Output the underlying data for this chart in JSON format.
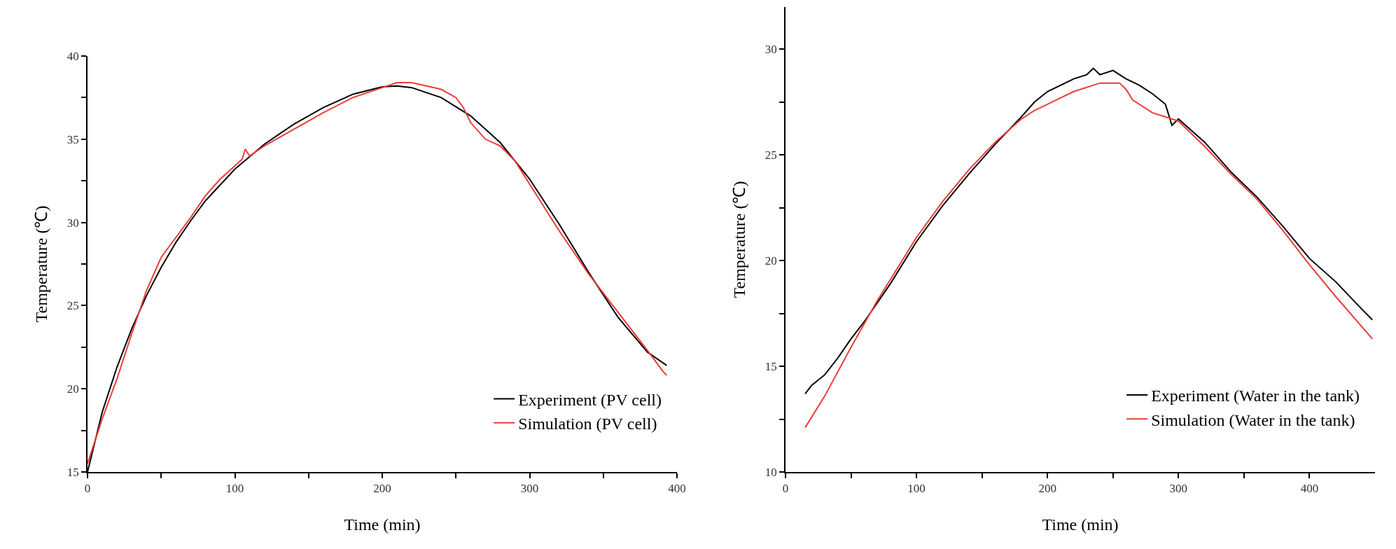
{
  "chart_data": [
    {
      "type": "line",
      "xlabel": "Time (min)",
      "ylabel": "Temperature (℃)",
      "xlim": [
        0,
        400
      ],
      "ylim": [
        15,
        40
      ],
      "xticks": [
        0,
        {
          "value": 50,
          "label": null
        },
        100,
        {
          "value": 150,
          "label": null
        },
        200,
        {
          "value": 250,
          "label": null
        },
        300,
        {
          "value": 350,
          "label": null
        },
        400
      ],
      "yticks": [
        15,
        {
          "value": 17.5,
          "label": null
        },
        20,
        {
          "value": 22.5,
          "label": null
        },
        25,
        {
          "value": 27.5,
          "label": null
        },
        30,
        {
          "value": 32.5,
          "label": null
        },
        35,
        {
          "value": 37.5,
          "label": null
        },
        40
      ],
      "grid": false,
      "legend": "bottom right",
      "series": [
        {
          "name": "Experiment (PV cell)",
          "color": "#000000",
          "x": [
            0,
            10,
            20,
            30,
            40,
            50,
            60,
            70,
            80,
            100,
            120,
            140,
            160,
            180,
            200,
            210,
            220,
            240,
            260,
            280,
            300,
            320,
            340,
            360,
            380,
            393
          ],
          "values": [
            15,
            18.6,
            21.3,
            23.6,
            25.6,
            27.3,
            28.8,
            30.1,
            31.3,
            33.2,
            34.7,
            35.9,
            36.9,
            37.7,
            38.15,
            38.2,
            38.1,
            37.5,
            36.4,
            34.8,
            32.6,
            29.9,
            27.0,
            24.3,
            22.2,
            21.4
          ]
        },
        {
          "name": "Simulation (PV cell)",
          "color": "#ee3a3a",
          "x": [
            0,
            10,
            20,
            30,
            40,
            50,
            60,
            70,
            80,
            90,
            100,
            105,
            107,
            110,
            120,
            140,
            160,
            180,
            200,
            210,
            220,
            240,
            250,
            255,
            260,
            270,
            280,
            290,
            300,
            320,
            340,
            360,
            380,
            390,
            393
          ],
          "values": [
            15.5,
            18.2,
            20.6,
            23.3,
            25.9,
            27.9,
            29.1,
            30.3,
            31.6,
            32.6,
            33.4,
            33.8,
            34.4,
            34.0,
            34.6,
            35.6,
            36.6,
            37.5,
            38.1,
            38.4,
            38.4,
            38.0,
            37.5,
            36.9,
            36.0,
            35.0,
            34.6,
            33.7,
            32.3,
            29.5,
            26.9,
            24.6,
            22.3,
            21.1,
            20.8
          ]
        }
      ]
    },
    {
      "type": "line",
      "xlabel": "Time (min)",
      "ylabel": "Temperature (℃)",
      "xlim": [
        0,
        450
      ],
      "ylim": [
        10,
        32
      ],
      "xticks": [
        0,
        {
          "value": 50,
          "label": null
        },
        100,
        {
          "value": 150,
          "label": null
        },
        200,
        {
          "value": 250,
          "label": null
        },
        300,
        {
          "value": 350,
          "label": null
        },
        400
      ],
      "yticks": [
        10,
        {
          "value": 12.5,
          "label": null
        },
        15,
        {
          "value": 17.5,
          "label": null
        },
        20,
        {
          "value": 22.5,
          "label": null
        },
        25,
        {
          "value": 27.5,
          "label": null
        },
        30
      ],
      "grid": false,
      "legend": "bottom right",
      "series": [
        {
          "name": "Experiment (Water in the tank)",
          "color": "#000000",
          "x": [
            15,
            20,
            30,
            40,
            50,
            60,
            80,
            100,
            120,
            140,
            160,
            180,
            190,
            200,
            220,
            230,
            235,
            240,
            250,
            260,
            270,
            280,
            290,
            295,
            300,
            320,
            340,
            360,
            380,
            400,
            420,
            440,
            448
          ],
          "values": [
            13.7,
            14.1,
            14.6,
            15.4,
            16.3,
            17.1,
            18.9,
            20.9,
            22.6,
            24.1,
            25.5,
            26.8,
            27.5,
            28.0,
            28.6,
            28.8,
            29.1,
            28.8,
            29.0,
            28.6,
            28.3,
            27.9,
            27.4,
            26.4,
            26.7,
            25.6,
            24.2,
            23.0,
            21.6,
            20.1,
            19.0,
            17.7,
            17.2
          ]
        },
        {
          "name": "Simulation (Water in the tank)",
          "color": "#ee3a3a",
          "x": [
            15,
            30,
            50,
            70,
            100,
            120,
            140,
            160,
            180,
            190,
            200,
            220,
            240,
            255,
            260,
            265,
            280,
            300,
            320,
            340,
            360,
            380,
            400,
            420,
            448
          ],
          "values": [
            12.1,
            13.6,
            15.9,
            18.1,
            21.1,
            22.8,
            24.3,
            25.6,
            26.7,
            27.1,
            27.4,
            28.0,
            28.4,
            28.4,
            28.1,
            27.6,
            27.0,
            26.6,
            25.4,
            24.1,
            22.9,
            21.4,
            19.8,
            18.3,
            16.3
          ]
        }
      ]
    }
  ]
}
